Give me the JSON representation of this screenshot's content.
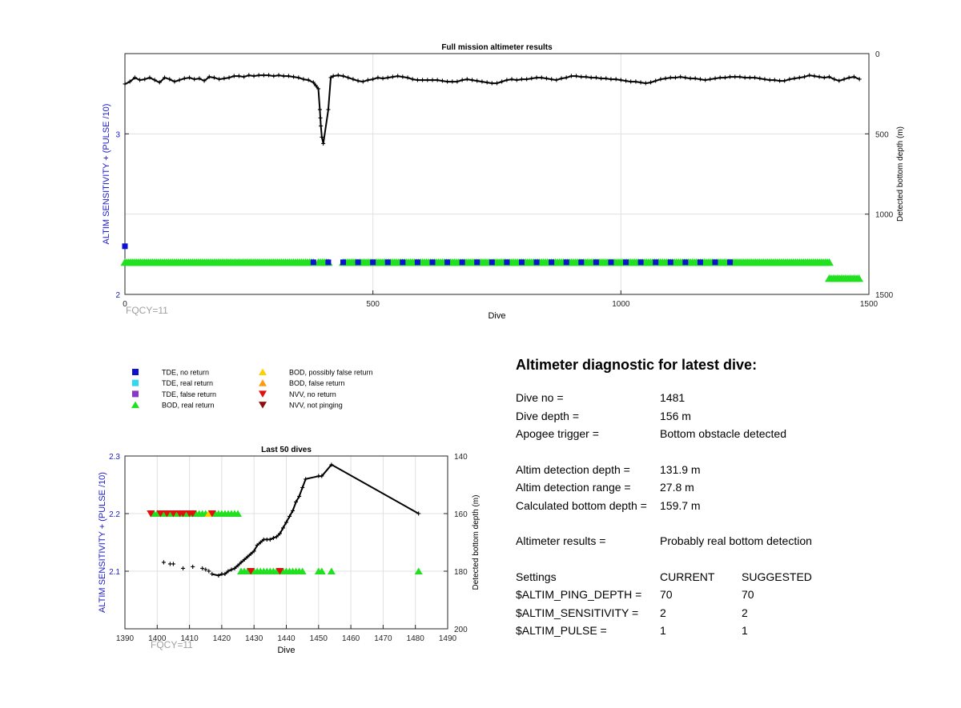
{
  "chart_data": [
    {
      "type": "scatter",
      "title": "Full mission altimeter results",
      "xlabel": "Dive",
      "ylabel": "ALTIM SENSITIVITY + (PULSE /10)",
      "y2label": "Detected bottom depth (m)",
      "xlim": [
        0,
        1500
      ],
      "ylim": [
        2,
        3.5
      ],
      "y2lim": [
        0,
        1500
      ],
      "xticks": [
        0,
        500,
        1000,
        1500
      ],
      "yticks": [
        2,
        3
      ],
      "y2ticks": [
        0,
        500,
        1000,
        1500
      ],
      "grid": true,
      "footnote": "FQCY=11",
      "depth_series": {
        "name": "Detected bottom depth",
        "points": [
          [
            0,
            190
          ],
          [
            10,
            175
          ],
          [
            20,
            150
          ],
          [
            30,
            165
          ],
          [
            40,
            160
          ],
          [
            50,
            150
          ],
          [
            60,
            165
          ],
          [
            70,
            180
          ],
          [
            80,
            150
          ],
          [
            90,
            160
          ],
          [
            100,
            175
          ],
          [
            110,
            165
          ],
          [
            120,
            155
          ],
          [
            130,
            150
          ],
          [
            140,
            160
          ],
          [
            150,
            155
          ],
          [
            160,
            170
          ],
          [
            170,
            145
          ],
          [
            180,
            150
          ],
          [
            190,
            160
          ],
          [
            200,
            155
          ],
          [
            210,
            150
          ],
          [
            220,
            140
          ],
          [
            230,
            140
          ],
          [
            240,
            145
          ],
          [
            250,
            135
          ],
          [
            260,
            140
          ],
          [
            270,
            135
          ],
          [
            280,
            135
          ],
          [
            290,
            135
          ],
          [
            300,
            140
          ],
          [
            310,
            135
          ],
          [
            320,
            140
          ],
          [
            330,
            140
          ],
          [
            340,
            145
          ],
          [
            350,
            150
          ],
          [
            360,
            160
          ],
          [
            370,
            165
          ],
          [
            380,
            180
          ],
          [
            385,
            200
          ],
          [
            390,
            220
          ],
          [
            393,
            350
          ],
          [
            394,
            400
          ],
          [
            395,
            450
          ],
          [
            397,
            520
          ],
          [
            400,
            560
          ],
          [
            410,
            350
          ],
          [
            415,
            150
          ],
          [
            420,
            140
          ],
          [
            430,
            135
          ],
          [
            440,
            140
          ],
          [
            450,
            150
          ],
          [
            460,
            160
          ],
          [
            470,
            170
          ],
          [
            480,
            175
          ],
          [
            490,
            165
          ],
          [
            500,
            160
          ],
          [
            510,
            150
          ],
          [
            520,
            155
          ],
          [
            530,
            150
          ],
          [
            540,
            145
          ],
          [
            550,
            140
          ],
          [
            560,
            145
          ],
          [
            570,
            150
          ],
          [
            580,
            160
          ],
          [
            590,
            165
          ],
          [
            600,
            165
          ],
          [
            610,
            165
          ],
          [
            620,
            165
          ],
          [
            630,
            165
          ],
          [
            640,
            170
          ],
          [
            650,
            175
          ],
          [
            660,
            175
          ],
          [
            670,
            175
          ],
          [
            680,
            165
          ],
          [
            690,
            160
          ],
          [
            700,
            165
          ],
          [
            710,
            170
          ],
          [
            720,
            175
          ],
          [
            730,
            180
          ],
          [
            740,
            185
          ],
          [
            750,
            185
          ],
          [
            760,
            175
          ],
          [
            770,
            165
          ],
          [
            780,
            160
          ],
          [
            790,
            165
          ],
          [
            800,
            160
          ],
          [
            810,
            160
          ],
          [
            820,
            155
          ],
          [
            830,
            150
          ],
          [
            840,
            150
          ],
          [
            850,
            155
          ],
          [
            860,
            160
          ],
          [
            870,
            165
          ],
          [
            880,
            155
          ],
          [
            890,
            150
          ],
          [
            900,
            140
          ],
          [
            910,
            140
          ],
          [
            920,
            145
          ],
          [
            930,
            145
          ],
          [
            940,
            150
          ],
          [
            950,
            150
          ],
          [
            960,
            155
          ],
          [
            970,
            155
          ],
          [
            980,
            160
          ],
          [
            990,
            160
          ],
          [
            1000,
            165
          ],
          [
            1010,
            170
          ],
          [
            1020,
            175
          ],
          [
            1030,
            175
          ],
          [
            1040,
            180
          ],
          [
            1050,
            185
          ],
          [
            1060,
            180
          ],
          [
            1070,
            170
          ],
          [
            1080,
            160
          ],
          [
            1090,
            155
          ],
          [
            1100,
            150
          ],
          [
            1110,
            150
          ],
          [
            1120,
            145
          ],
          [
            1130,
            150
          ],
          [
            1140,
            155
          ],
          [
            1150,
            155
          ],
          [
            1160,
            160
          ],
          [
            1170,
            165
          ],
          [
            1180,
            160
          ],
          [
            1190,
            155
          ],
          [
            1200,
            150
          ],
          [
            1210,
            150
          ],
          [
            1220,
            145
          ],
          [
            1230,
            145
          ],
          [
            1240,
            145
          ],
          [
            1250,
            150
          ],
          [
            1260,
            150
          ],
          [
            1270,
            150
          ],
          [
            1280,
            155
          ],
          [
            1290,
            160
          ],
          [
            1300,
            165
          ],
          [
            1310,
            165
          ],
          [
            1320,
            170
          ],
          [
            1330,
            170
          ],
          [
            1340,
            160
          ],
          [
            1350,
            155
          ],
          [
            1360,
            150
          ],
          [
            1370,
            145
          ],
          [
            1380,
            135
          ],
          [
            1390,
            140
          ],
          [
            1400,
            145
          ],
          [
            1410,
            150
          ],
          [
            1420,
            145
          ],
          [
            1430,
            160
          ],
          [
            1440,
            170
          ],
          [
            1450,
            160
          ],
          [
            1460,
            150
          ],
          [
            1470,
            145
          ],
          [
            1481,
            160
          ]
        ]
      },
      "dive_profile_note": "Depth series shown as sampled polyline; bottom depth values read from the right axis (m).",
      "bod_real_band": [
        [
          0,
          2.2,
          380
        ],
        [
          390,
          2.2,
          410
        ],
        [
          440,
          2.2,
          1420
        ],
        [
          1420,
          2.1,
          1480
        ]
      ],
      "tde_no_return_segments": [
        [
          0,
          2.3,
          5
        ],
        [
          380,
          2.2,
          410
        ],
        [
          440,
          2.2,
          1240
        ]
      ]
    },
    {
      "type": "scatter",
      "title": "Last 50 dives",
      "xlabel": "Dive",
      "ylabel": "ALTIM SENSITIVITY + (PULSE /10)",
      "y2label": "Detected bottom depth (m)",
      "xlim": [
        1390,
        1490
      ],
      "ylim": [
        2.0,
        2.3
      ],
      "y2lim": [
        140,
        200
      ],
      "xticks": [
        1390,
        1400,
        1410,
        1420,
        1430,
        1440,
        1450,
        1460,
        1470,
        1480,
        1490
      ],
      "yticks": [
        2.1,
        2.2,
        2.3
      ],
      "y2ticks": [
        140,
        160,
        180,
        200
      ],
      "grid": true,
      "footnote": "FQCY=11",
      "depth_series": {
        "name": "Detected bottom depth",
        "points": [
          [
            1402,
            177
          ],
          [
            1404,
            177.5
          ],
          [
            1405,
            177.5
          ],
          [
            1408,
            179
          ],
          [
            1411,
            178.5
          ],
          [
            1414,
            179
          ],
          [
            1415,
            179.5
          ],
          [
            1416,
            180
          ],
          [
            1417,
            181
          ],
          [
            1419,
            181.5
          ],
          [
            1420,
            181
          ],
          [
            1421,
            181
          ],
          [
            1422,
            180
          ],
          [
            1423,
            179.5
          ],
          [
            1424,
            179
          ],
          [
            1425,
            178
          ],
          [
            1426,
            177
          ],
          [
            1427,
            176
          ],
          [
            1428,
            175
          ],
          [
            1429,
            174
          ],
          [
            1430,
            173
          ],
          [
            1431,
            171
          ],
          [
            1432,
            170
          ],
          [
            1433,
            169
          ],
          [
            1434,
            169
          ],
          [
            1435,
            169
          ],
          [
            1436,
            168.5
          ],
          [
            1437,
            168
          ],
          [
            1438,
            167
          ],
          [
            1439,
            165
          ],
          [
            1440,
            163
          ],
          [
            1441,
            161
          ],
          [
            1442,
            159
          ],
          [
            1443,
            156
          ],
          [
            1444,
            154
          ],
          [
            1445,
            151
          ],
          [
            1446,
            148
          ],
          [
            1450,
            147
          ],
          [
            1451,
            147
          ],
          [
            1454,
            143
          ],
          [
            1481,
            160
          ]
        ]
      },
      "bod_real_return": {
        "sensitivity_2_2": [
          1399,
          1400,
          1401,
          1402,
          1403,
          1404,
          1405,
          1406,
          1407,
          1408,
          1409,
          1410,
          1411,
          1412,
          1413,
          1414,
          1415,
          1416,
          1417,
          1418,
          1419,
          1420,
          1421,
          1422,
          1423,
          1424,
          1425
        ],
        "sensitivity_2_1": [
          1426,
          1427,
          1428,
          1429,
          1430,
          1431,
          1432,
          1433,
          1434,
          1435,
          1436,
          1437,
          1438,
          1439,
          1440,
          1441,
          1442,
          1443,
          1444,
          1445,
          1450,
          1451,
          1454,
          1481
        ]
      },
      "nvv_no_return": {
        "sensitivity_2_2": [
          1398,
          1401,
          1403,
          1405,
          1407,
          1408,
          1410,
          1411,
          1417
        ],
        "sensitivity_2_1": [
          1429,
          1438
        ]
      },
      "bod_possibly_false_return": {
        "sensitivity_2_2": [
          1416
        ]
      }
    }
  ],
  "legend": {
    "items": [
      {
        "label": "TDE, no return",
        "shape": "square",
        "color": "#1010d0"
      },
      {
        "label": "TDE, real return",
        "shape": "square",
        "color": "#30d8f0"
      },
      {
        "label": "TDE, false return",
        "shape": "square",
        "color": "#8a36c9"
      },
      {
        "label": "BOD, real return",
        "shape": "triangle-up",
        "color": "#20e020"
      },
      {
        "label": "BOD, possibly false return",
        "shape": "triangle-up",
        "color": "#ffd000"
      },
      {
        "label": "BOD, false return",
        "shape": "triangle-up",
        "color": "#ff9a10"
      },
      {
        "label": "NVV, no return",
        "shape": "triangle-down",
        "color": "#e01010"
      },
      {
        "label": "NVV, not pinging",
        "shape": "triangle-down",
        "color": "#8a1010"
      }
    ]
  },
  "diagnostic": {
    "title": "Altimeter diagnostic for latest dive:",
    "dive_no_label": "Dive no =",
    "dive_no_value": "1481",
    "dive_depth_label": "Dive depth =",
    "dive_depth_value": "156 m",
    "apogee_label": "Apogee trigger =",
    "apogee_value": "Bottom obstacle detected",
    "altim_depth_label": "Altim detection depth =",
    "altim_depth_value": "131.9 m",
    "altim_range_label": "Altim detection range =",
    "altim_range_value": "27.8 m",
    "calc_bottom_label": "Calculated bottom depth =",
    "calc_bottom_value": "159.7 m",
    "results_label": "Altimeter results =",
    "results_value": "Probably real bottom detection",
    "settings_label": "Settings",
    "current_label": "CURRENT",
    "suggested_label": "SUGGESTED",
    "ping_depth_label": "$ALTIM_PING_DEPTH =",
    "ping_depth_current": "70",
    "ping_depth_suggested": "70",
    "sensitivity_label": "$ALTIM_SENSITIVITY =",
    "sensitivity_current": "2",
    "sensitivity_suggested": "2",
    "pulse_label": "$ALTIM_PULSE =",
    "pulse_current": "1",
    "pulse_suggested": "1"
  },
  "colors": {
    "left_axis": "#1a1acc",
    "right_axis": "#000000",
    "grid": "#e0e0e0",
    "footnote": "#a0a0a0",
    "depth_line": "#000000"
  }
}
